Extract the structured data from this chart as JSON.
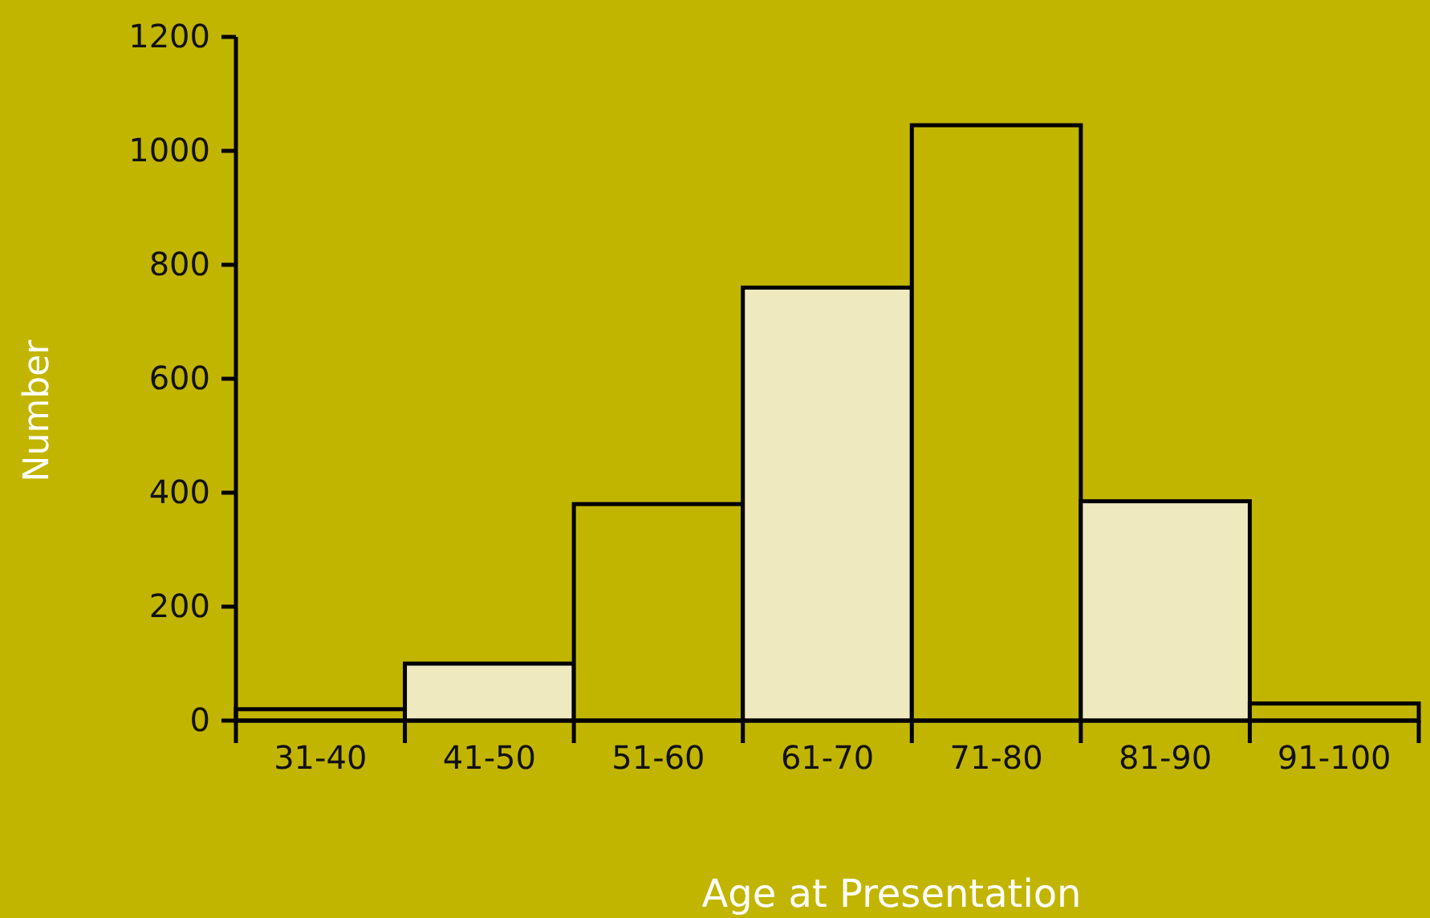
{
  "chart_data": {
    "type": "bar",
    "xlabel": "Age at Presentation",
    "ylabel": "Number",
    "categories": [
      "31-40",
      "41-50",
      "51-60",
      "61-70",
      "71-80",
      "81-90",
      "91-100"
    ],
    "values": [
      20,
      100,
      380,
      760,
      1045,
      385,
      30
    ],
    "colors": [
      "#c2b500",
      "#efe9c0",
      "#c2b500",
      "#efe9c0",
      "#c2b500",
      "#efe9c0",
      "#c2b500"
    ],
    "ylim": [
      0,
      1200
    ],
    "yticks": [
      0,
      200,
      400,
      600,
      800,
      1000,
      1200
    ]
  }
}
